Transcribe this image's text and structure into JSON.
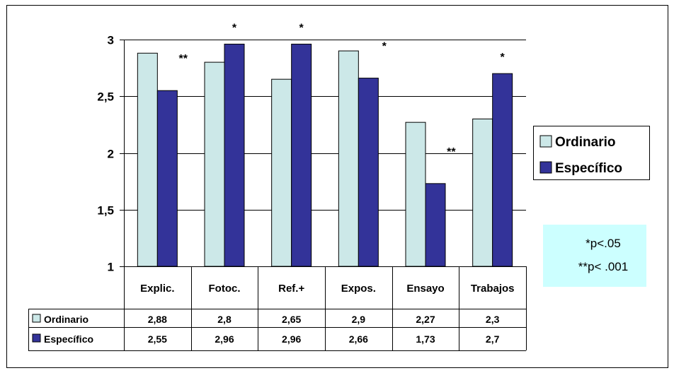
{
  "chart_data": {
    "type": "bar",
    "categories": [
      "Explic.",
      "Fotoc.",
      "Ref.+",
      "Expos.",
      "Ensayo",
      "Trabajos"
    ],
    "series": [
      {
        "name": "Ordinario",
        "values": [
          2.88,
          2.8,
          2.65,
          2.9,
          2.27,
          2.3
        ],
        "color": "#cce8e8"
      },
      {
        "name": "Específico",
        "values": [
          2.55,
          2.96,
          2.96,
          2.66,
          1.73,
          2.7
        ],
        "color": "#333399"
      }
    ],
    "table_values": [
      [
        "2,88",
        "2,8",
        "2,65",
        "2,9",
        "2,27",
        "2,3"
      ],
      [
        "2,55",
        "2,96",
        "2,96",
        "2,66",
        "1,73",
        "2,7"
      ]
    ],
    "ylim": [
      1,
      3
    ],
    "yticks": [
      1,
      1.5,
      2,
      2.5,
      3
    ],
    "ytick_labels": [
      "1",
      "1,5",
      "2",
      "2,5",
      "3"
    ],
    "significance": [
      {
        "category": 0,
        "label": "**"
      },
      {
        "category": 1,
        "label": "*"
      },
      {
        "category": 2,
        "label": "*"
      },
      {
        "category": 3,
        "label": "*"
      },
      {
        "category": 4,
        "label": "**"
      },
      {
        "category": 5,
        "label": "*"
      }
    ],
    "legend_position": "right",
    "note_lines": [
      "*p<.05",
      "**p< .001"
    ],
    "note_background": "#ccffff",
    "grid": true,
    "data_table": true
  }
}
